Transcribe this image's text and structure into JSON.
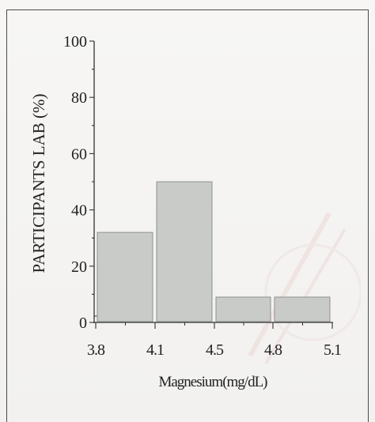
{
  "chart_data": {
    "type": "bar",
    "title": "",
    "xlabel": "Magnesium(mg/dL)",
    "ylabel": "PARTICIPANTS LAB (%)",
    "x_ticks": [
      "3.8",
      "4.1",
      "4.5",
      "4.8",
      "5.1"
    ],
    "y_ticks": [
      "0",
      "20",
      "40",
      "60",
      "80",
      "100"
    ],
    "ylim": [
      0,
      100
    ],
    "bins": [
      {
        "from": "3.8",
        "to": "4.1",
        "value": 32
      },
      {
        "from": "4.1",
        "to": "4.5",
        "value": 50
      },
      {
        "from": "4.5",
        "to": "4.8",
        "value": 9
      },
      {
        "from": "4.8",
        "to": "5.1",
        "value": 9
      }
    ],
    "bar_color": "#c9cbc9",
    "grid": false
  }
}
